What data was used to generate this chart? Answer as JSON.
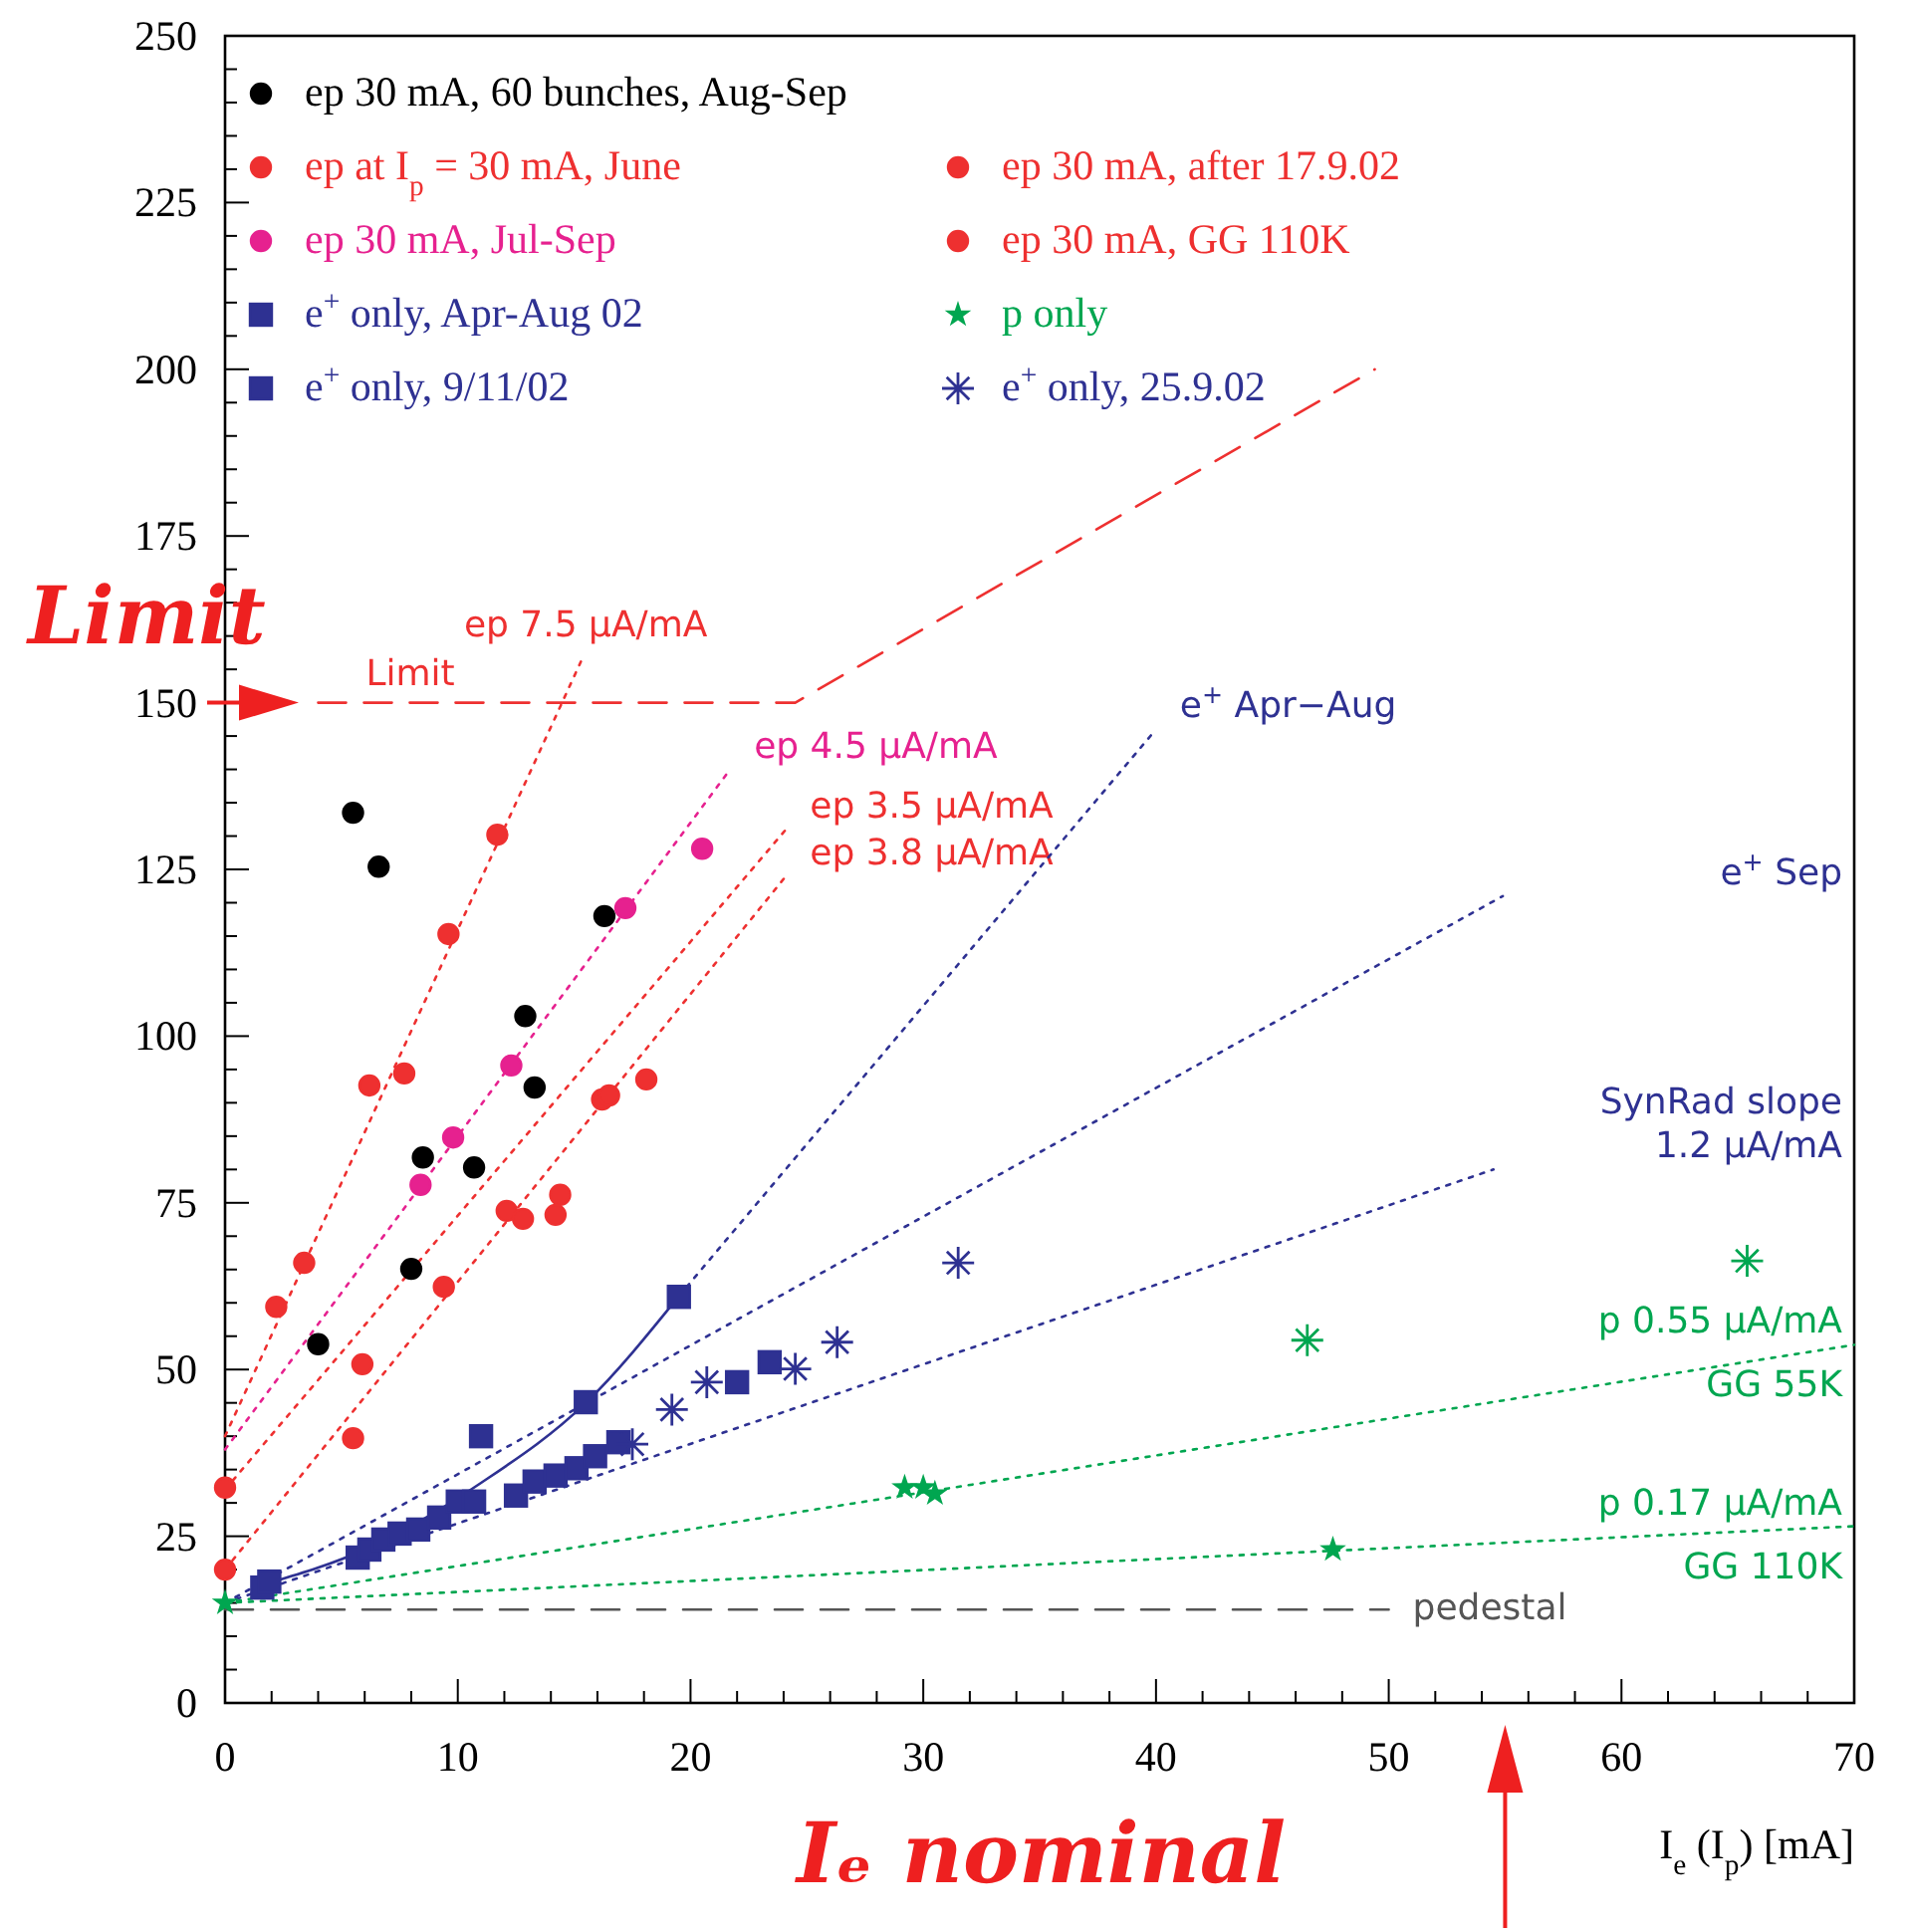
{
  "chart_data": {
    "type": "scatter",
    "xlabel": "I$_{e}$ (I$_{p}$) [mA]",
    "xlim": [
      0,
      70
    ],
    "ylim": [
      0,
      250
    ],
    "xticks": [
      0,
      {
        "value": 2,
        "label": null
      },
      {
        "value": 4,
        "label": null
      },
      {
        "value": 6,
        "label": null
      },
      {
        "value": 8,
        "label": null
      },
      10,
      {
        "value": 12,
        "label": null
      },
      {
        "value": 14,
        "label": null
      },
      {
        "value": 16,
        "label": null
      },
      {
        "value": 18,
        "label": null
      },
      20,
      {
        "value": 22,
        "label": null
      },
      {
        "value": 24,
        "label": null
      },
      {
        "value": 26,
        "label": null
      },
      {
        "value": 28,
        "label": null
      },
      30,
      {
        "value": 32,
        "label": null
      },
      {
        "value": 34,
        "label": null
      },
      {
        "value": 36,
        "label": null
      },
      {
        "value": 38,
        "label": null
      },
      40,
      {
        "value": 42,
        "label": null
      },
      {
        "value": 44,
        "label": null
      },
      {
        "value": 46,
        "label": null
      },
      {
        "value": 48,
        "label": null
      },
      50,
      {
        "value": 52,
        "label": null
      },
      {
        "value": 54,
        "label": null
      },
      {
        "value": 56,
        "label": null
      },
      {
        "value": 58,
        "label": null
      },
      60,
      {
        "value": 62,
        "label": null
      },
      {
        "value": 64,
        "label": null
      },
      {
        "value": 66,
        "label": null
      },
      {
        "value": 68,
        "label": null
      },
      70
    ],
    "yticks": [
      0,
      {
        "value": 5,
        "label": null
      },
      {
        "value": 10,
        "label": null
      },
      {
        "value": 15,
        "label": null
      },
      {
        "value": 20,
        "label": null
      },
      25,
      {
        "value": 30,
        "label": null
      },
      {
        "value": 35,
        "label": null
      },
      {
        "value": 40,
        "label": null
      },
      {
        "value": 45,
        "label": null
      },
      50,
      {
        "value": 55,
        "label": null
      },
      {
        "value": 60,
        "label": null
      },
      {
        "value": 65,
        "label": null
      },
      {
        "value": 70,
        "label": null
      },
      75,
      {
        "value": 80,
        "label": null
      },
      {
        "value": 85,
        "label": null
      },
      {
        "value": 90,
        "label": null
      },
      {
        "value": 95,
        "label": null
      },
      100,
      {
        "value": 105,
        "label": null
      },
      {
        "value": 110,
        "label": null
      },
      {
        "value": 115,
        "label": null
      },
      {
        "value": 120,
        "label": null
      },
      125,
      {
        "value": 130,
        "label": null
      },
      {
        "value": 135,
        "label": null
      },
      {
        "value": 140,
        "label": null
      },
      {
        "value": 145,
        "label": null
      },
      150,
      {
        "value": 155,
        "label": null
      },
      {
        "value": 160,
        "label": null
      },
      {
        "value": 165,
        "label": null
      },
      {
        "value": 170,
        "label": null
      },
      175,
      {
        "value": 180,
        "label": null
      },
      {
        "value": 185,
        "label": null
      },
      {
        "value": 190,
        "label": null
      },
      {
        "value": 195,
        "label": null
      },
      200,
      {
        "value": 205,
        "label": null
      },
      {
        "value": 210,
        "label": null
      },
      {
        "value": 215,
        "label": null
      },
      {
        "value": 220,
        "label": null
      },
      225,
      {
        "value": 230,
        "label": null
      },
      {
        "value": 235,
        "label": null
      },
      {
        "value": 240,
        "label": null
      },
      {
        "value": 245,
        "label": null
      },
      250
    ],
    "grid": false,
    "legend": "top left",
    "series": [
      {
        "name": "ep 30 mA, 60 bunches, Aug-Sep",
        "color": "#000000",
        "marker": "circle",
        "x": [
          5.5,
          6.6,
          16.3,
          12.9,
          13.3,
          8.5,
          10.7,
          8.0,
          4.0
        ],
        "values": [
          133.5,
          125.4,
          118,
          103,
          92.3,
          81.8,
          80.3,
          65.1,
          53.8
        ]
      },
      {
        "name": "ep at I$_{p}$ = 30 mA, June",
        "color": "#ee3030",
        "marker": "circle",
        "x": [
          0,
          2.2,
          3.4,
          6.2,
          7.7,
          9.6,
          11.7
        ],
        "values": [
          20,
          59.4,
          66,
          92.6,
          94.4,
          115.3,
          130.2
        ]
      },
      {
        "name": "ep 30 mA, after 17.9.02",
        "color": "#ee3030",
        "marker": "circle",
        "x": [
          0,
          5.9,
          9.4,
          12.1,
          12.8,
          16.2,
          16.5,
          18.1
        ],
        "values": [
          32.3,
          50.8,
          62.4,
          73.8,
          72.6,
          90.5,
          91.1,
          93.5
        ]
      },
      {
        "name": "ep 30 mA, Jul-Sep",
        "color": "#e6218f",
        "marker": "circle",
        "x": [
          8.4,
          9.8,
          12.3,
          17.2,
          20.5
        ],
        "values": [
          77.7,
          84.8,
          95.6,
          119.2,
          128.1
        ]
      },
      {
        "name": "ep 30 mA, GG 110K",
        "color": "#ee3030",
        "marker": "circle",
        "x": [
          5.5,
          14.4,
          14.2
        ],
        "values": [
          39.7,
          76.2,
          73.2
        ]
      },
      {
        "name": "e$^{+}$ only, Apr-Aug 02",
        "color": "#2e3192",
        "marker": "square",
        "x": [
          1.6,
          1.9,
          5.7,
          11.0,
          15.5,
          19.5
        ],
        "values": [
          17.3,
          18.2,
          21.8,
          40,
          45.1,
          60.9
        ]
      },
      {
        "name": "p only",
        "color": "#00a650",
        "marker": "star",
        "x": [
          0,
          29.2,
          30.0,
          30.5,
          47.6
        ],
        "values": [
          15,
          32.3,
          32.3,
          31.4,
          23.0
        ]
      },
      {
        "name": "e$^{+}$ only, 9/11/02",
        "color": "#2e3192",
        "marker": "square",
        "x": [
          6.2,
          6.8,
          7.5,
          8.3,
          9.2,
          10.0,
          10.7,
          12.5,
          13.3,
          14.2,
          15.1,
          15.9,
          16.9,
          22.0,
          23.4
        ],
        "values": [
          23,
          24.5,
          25.4,
          26,
          27.8,
          30.2,
          30.2,
          31.1,
          33.2,
          34.1,
          35.2,
          37,
          39.1,
          48.1,
          51.1
        ]
      },
      {
        "name": "e$^{+}$ only, 25.9.02",
        "color": "#2e3192",
        "marker": "cross",
        "x": [
          17.5,
          19.2,
          20.7,
          24.5,
          26.3,
          31.5
        ],
        "values": [
          38.8,
          44,
          48.1,
          50.1,
          54.1,
          66.0
        ]
      },
      {
        "color": "#00a650",
        "marker": "cross",
        "x": [
          46.5,
          65.4
        ],
        "values": [
          54.4,
          66.3
        ]
      },
      {
        "type": "line",
        "name": "ep 7.5 μA/mA",
        "color": "#ee3030",
        "marker": "none",
        "line_style": "dotted",
        "x": [
          0,
          15.4
        ],
        "values": [
          40,
          157
        ]
      },
      {
        "type": "line",
        "name": "ep  4.5 μA/mA",
        "color": "#e6218f",
        "marker": "none",
        "line_style": "dotted",
        "x": [
          0,
          21.7
        ],
        "values": [
          38,
          140
        ]
      },
      {
        "type": "line",
        "name": "ep 3.5 μA/mA",
        "color": "#ee3030",
        "marker": "none",
        "line_style": "dotted",
        "x": [
          0,
          24.1
        ],
        "values": [
          32,
          131
        ]
      },
      {
        "type": "line",
        "name": "ep 3.8 μA/mA",
        "color": "#ee3030",
        "marker": "none",
        "line_style": "dotted",
        "x": [
          0,
          24.1
        ],
        "values": [
          20,
          124
        ]
      },
      {
        "type": "line",
        "color": "#2e3192",
        "marker": "none",
        "line_style": "solid",
        "x": [
          1.9,
          6,
          11,
          15.5,
          19.5
        ],
        "values": [
          18,
          23,
          33,
          45,
          61
        ]
      },
      {
        "type": "line",
        "name": "e$^{+}$ Apr−Aug",
        "color": "#2e3192",
        "marker": "none",
        "line_style": "dotted",
        "x": [
          19.5,
          40
        ],
        "values": [
          61,
          146
        ]
      },
      {
        "type": "line",
        "name": "e$^{+}$ Sep",
        "color": "#2e3192",
        "marker": "none",
        "line_style": "dotted",
        "x": [
          0,
          54.9
        ],
        "values": [
          15,
          121
        ]
      },
      {
        "type": "line",
        "name": "SynRad slope\n1.2 μA/mA",
        "color": "#2e3192",
        "marker": "none",
        "line_style": "dotted",
        "x": [
          0,
          54.5
        ],
        "values": [
          15,
          80
        ]
      },
      {
        "type": "line",
        "name": "p 0.55 μA/mA",
        "color": "#00a650",
        "marker": "none",
        "line_style": "dotted",
        "x": [
          0,
          70
        ],
        "values": [
          15,
          53.7
        ]
      },
      {
        "type": "line",
        "name": "p 0.17 μA/mA",
        "color": "#00a650",
        "marker": "none",
        "line_style": "dotted",
        "x": [
          0,
          70
        ],
        "values": [
          15,
          26.5
        ]
      },
      {
        "type": "line",
        "name": "pedestal",
        "color": "#555555",
        "marker": "none",
        "line_style": "dashed",
        "x": [
          0,
          50
        ],
        "values": [
          14,
          14
        ]
      },
      {
        "type": "line",
        "name": "Limit",
        "color": "#ee3030",
        "marker": "none",
        "line_style": "dashed",
        "x": [
          4,
          24.5,
          49.4
        ],
        "values": [
          150,
          150,
          200
        ]
      }
    ],
    "annotations": [
      "Limit",
      "Iₑ nominal",
      {
        "text": "GG 55K",
        "x": 70,
        "y": 53.7
      },
      {
        "text": "GG 110K",
        "x": 70,
        "y": 26.5
      }
    ]
  }
}
